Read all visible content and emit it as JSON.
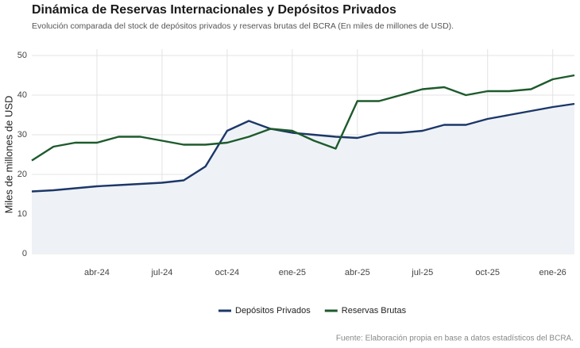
{
  "chart_data": {
    "type": "line",
    "title": "Dinámica de Reservas Internacionales y Depósitos Privados",
    "subtitle": "Evolución comparada del stock de depósitos privados y reservas brutas del BCRA (En miles de millones de USD).",
    "y_label": "Miles de millones de USD",
    "source": "Fuente: Elaboración propia en base a datos estadísticos del BCRA.",
    "x": [
      "2024-01",
      "2024-02",
      "2024-03",
      "2024-04",
      "2024-05",
      "2024-06",
      "2024-07",
      "2024-08",
      "2024-09",
      "2024-10",
      "2024-11",
      "2024-12",
      "2025-01",
      "2025-02",
      "2025-03",
      "2025-04",
      "2025-05",
      "2025-06",
      "2025-07",
      "2025-08",
      "2025-09",
      "2025-10",
      "2025-11",
      "2025-12",
      "2026-01",
      "2026-02"
    ],
    "series": [
      {
        "name": "Depósitos Privados",
        "color": "#1c3768",
        "area_color": "#eef2f6",
        "values": [
          15.7,
          16,
          16.5,
          17,
          17.3,
          17.6,
          17.9,
          18.5,
          22,
          31,
          33.5,
          31.5,
          30.5,
          30,
          29.5,
          29.2,
          30.5,
          30.5,
          31,
          32.5,
          32.5,
          34,
          35,
          36,
          37,
          37.8
        ]
      },
      {
        "name": "Reservas Brutas",
        "color": "#1d5a2c",
        "values": [
          23.5,
          27,
          28,
          28,
          29.5,
          29.5,
          28.5,
          27.5,
          27.5,
          28,
          29.5,
          31.5,
          31,
          28.5,
          26.5,
          38.5,
          38.5,
          40,
          41.5,
          42,
          40,
          41,
          41,
          41.5,
          44,
          45
        ]
      }
    ],
    "xlim": [
      "2024-01",
      "2026-02"
    ],
    "xticks": [
      {
        "value": "2024-04",
        "label": "abr-24"
      },
      {
        "value": "2024-07",
        "label": "jul-24"
      },
      {
        "value": "2024-10",
        "label": "oct-24"
      },
      {
        "value": "2025-01",
        "label": "ene-25"
      },
      {
        "value": "2025-04",
        "label": "abr-25"
      },
      {
        "value": "2025-07",
        "label": "jul-25"
      },
      {
        "value": "2025-10",
        "label": "oct-25"
      },
      {
        "value": "2026-01",
        "label": "ene-26"
      }
    ],
    "ylim": [
      0,
      50
    ],
    "yticks": [
      0,
      10,
      20,
      30,
      40,
      50
    ],
    "grid": true
  }
}
